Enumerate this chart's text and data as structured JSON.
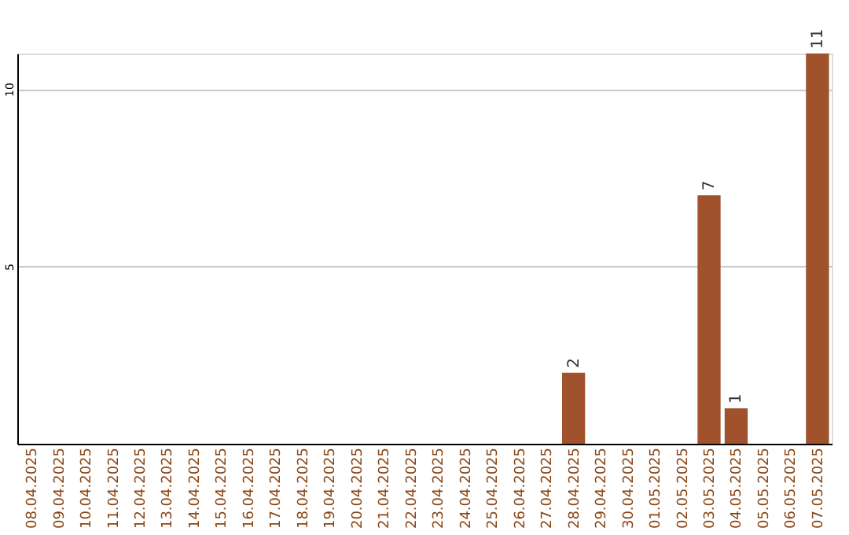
{
  "chart_data": {
    "type": "bar",
    "categories": [
      "08.04.2025",
      "09.04.2025",
      "10.04.2025",
      "11.04.2025",
      "12.04.2025",
      "13.04.2025",
      "14.04.2025",
      "15.04.2025",
      "16.04.2025",
      "17.04.2025",
      "18.04.2025",
      "19.04.2025",
      "20.04.2025",
      "21.04.2025",
      "22.04.2025",
      "23.04.2025",
      "24.04.2025",
      "25.04.2025",
      "26.04.2025",
      "27.04.2025",
      "28.04.2025",
      "29.04.2025",
      "30.04.2025",
      "01.05.2025",
      "02.05.2025",
      "03.05.2025",
      "04.05.2025",
      "05.05.2025",
      "06.05.2025",
      "07.05.2025"
    ],
    "values": [
      0,
      0,
      0,
      0,
      0,
      0,
      0,
      0,
      0,
      0,
      0,
      0,
      0,
      0,
      0,
      0,
      0,
      0,
      0,
      0,
      2,
      0,
      0,
      0,
      0,
      7,
      1,
      0,
      0,
      11
    ],
    "value_labels": [
      null,
      null,
      null,
      null,
      null,
      null,
      null,
      null,
      null,
      null,
      null,
      null,
      null,
      null,
      null,
      null,
      null,
      null,
      null,
      null,
      "2",
      null,
      null,
      null,
      null,
      "7",
      "1",
      null,
      null,
      "11"
    ],
    "color": "#a0522d",
    "ylim": [
      0,
      11
    ],
    "yticks": [
      5,
      10
    ],
    "grid": "y"
  }
}
